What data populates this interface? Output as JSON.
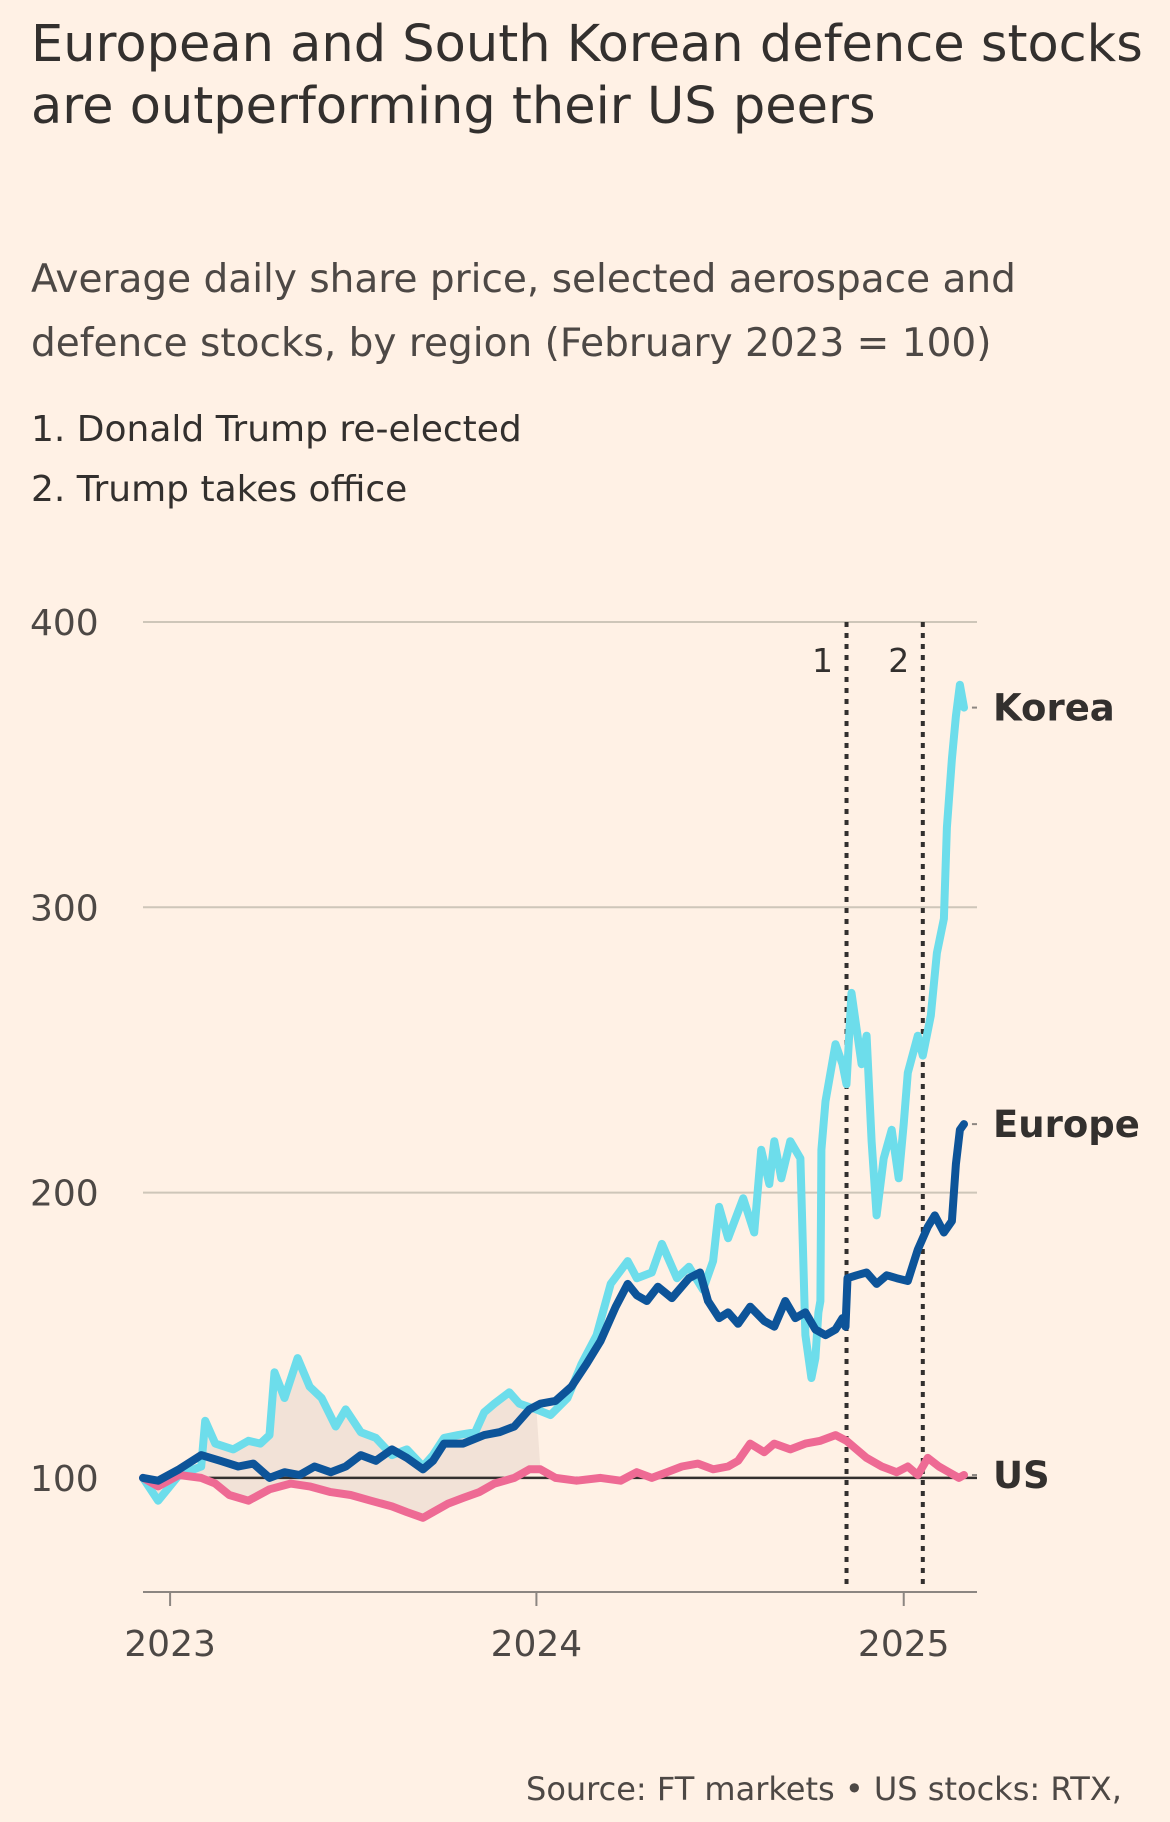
{
  "title": "European and South Korean defence stocks are outperforming their US peers",
  "subtitle": "Average daily share price, selected aerospace and defence stocks, by region (February 2023 = 100)",
  "annotations": [
    "1. Donald Trump re-elected",
    "2. Trump takes office"
  ],
  "source": "Source: FT markets • US stocks: RTX,",
  "colors": {
    "background": "#FFF1E5",
    "korea": "#6DDDEB",
    "europe": "#0D5499",
    "us": "#EE6A94",
    "grid": "#CEC6B9",
    "baseline": "#33302E",
    "shade": "#EDDCD2"
  },
  "chart_data": {
    "type": "line",
    "ylim": [
      60,
      400
    ],
    "yticks": [
      100,
      200,
      300,
      400
    ],
    "baseline": 100,
    "xlim": [
      "2022-12-05",
      "2025-03-15"
    ],
    "xticks": [
      {
        "date": "2023-01-01",
        "label": "2023"
      },
      {
        "date": "2024-01-01",
        "label": "2024"
      },
      {
        "date": "2025-01-01",
        "label": "2025"
      }
    ],
    "events": [
      {
        "label": "1",
        "date": "2024-11-05"
      },
      {
        "label": "2",
        "date": "2025-01-20"
      }
    ],
    "series": [
      {
        "name": "Korea",
        "color": "#6DDDEB",
        "points": [
          [
            "2022-12-05",
            100
          ],
          [
            "2022-12-20",
            92
          ],
          [
            "2023-01-10",
            101
          ],
          [
            "2023-02-01",
            104
          ],
          [
            "2023-02-05",
            120
          ],
          [
            "2023-02-15",
            112
          ],
          [
            "2023-03-05",
            110
          ],
          [
            "2023-03-20",
            113
          ],
          [
            "2023-04-01",
            112
          ],
          [
            "2023-04-10",
            115
          ],
          [
            "2023-04-15",
            137
          ],
          [
            "2023-04-25",
            128
          ],
          [
            "2023-05-08",
            142
          ],
          [
            "2023-05-20",
            132
          ],
          [
            "2023-06-01",
            128
          ],
          [
            "2023-06-15",
            118
          ],
          [
            "2023-06-25",
            124
          ],
          [
            "2023-07-10",
            116
          ],
          [
            "2023-07-25",
            114
          ],
          [
            "2023-08-10",
            108
          ],
          [
            "2023-08-25",
            110
          ],
          [
            "2023-09-10",
            104
          ],
          [
            "2023-09-20",
            108
          ],
          [
            "2023-10-01",
            114
          ],
          [
            "2023-10-15",
            115
          ],
          [
            "2023-11-01",
            116
          ],
          [
            "2023-11-10",
            123
          ],
          [
            "2023-11-20",
            126
          ],
          [
            "2023-12-05",
            130
          ],
          [
            "2023-12-15",
            126
          ],
          [
            "2024-01-01",
            124
          ],
          [
            "2024-01-15",
            122
          ],
          [
            "2024-02-01",
            128
          ],
          [
            "2024-02-15",
            140
          ],
          [
            "2024-03-01",
            150
          ],
          [
            "2024-03-15",
            168
          ],
          [
            "2024-04-01",
            176
          ],
          [
            "2024-04-10",
            170
          ],
          [
            "2024-04-25",
            172
          ],
          [
            "2024-05-05",
            182
          ],
          [
            "2024-05-20",
            170
          ],
          [
            "2024-06-01",
            174
          ],
          [
            "2024-06-15",
            166
          ],
          [
            "2024-06-25",
            176
          ],
          [
            "2024-07-01",
            195
          ],
          [
            "2024-07-10",
            184
          ],
          [
            "2024-07-25",
            198
          ],
          [
            "2024-08-05",
            186
          ],
          [
            "2024-08-12",
            215
          ],
          [
            "2024-08-20",
            203
          ],
          [
            "2024-08-25",
            218
          ],
          [
            "2024-09-01",
            205
          ],
          [
            "2024-09-10",
            218
          ],
          [
            "2024-09-20",
            212
          ],
          [
            "2024-09-25",
            150
          ],
          [
            "2024-10-01",
            135
          ],
          [
            "2024-10-05",
            142
          ],
          [
            "2024-10-08",
            158
          ],
          [
            "2024-10-10",
            162
          ],
          [
            "2024-10-11",
            215
          ],
          [
            "2024-10-15",
            232
          ],
          [
            "2024-10-25",
            252
          ],
          [
            "2024-11-01",
            245
          ],
          [
            "2024-11-05",
            238
          ],
          [
            "2024-11-10",
            270
          ],
          [
            "2024-11-20",
            245
          ],
          [
            "2024-11-25",
            255
          ],
          [
            "2024-11-30",
            218
          ],
          [
            "2024-12-05",
            192
          ],
          [
            "2024-12-12",
            212
          ],
          [
            "2024-12-20",
            222
          ],
          [
            "2024-12-27",
            205
          ],
          [
            "2025-01-01",
            224
          ],
          [
            "2025-01-05",
            242
          ],
          [
            "2025-01-15",
            255
          ],
          [
            "2025-01-20",
            248
          ],
          [
            "2025-01-28",
            262
          ],
          [
            "2025-02-03",
            284
          ],
          [
            "2025-02-10",
            296
          ],
          [
            "2025-02-13",
            328
          ],
          [
            "2025-02-18",
            352
          ],
          [
            "2025-02-22",
            367
          ],
          [
            "2025-02-26",
            378
          ],
          [
            "2025-03-02",
            370
          ]
        ]
      },
      {
        "name": "Europe",
        "color": "#0D5499",
        "points": [
          [
            "2022-12-05",
            100
          ],
          [
            "2022-12-20",
            99
          ],
          [
            "2023-01-10",
            103
          ],
          [
            "2023-02-01",
            108
          ],
          [
            "2023-02-20",
            106
          ],
          [
            "2023-03-10",
            104
          ],
          [
            "2023-03-25",
            105
          ],
          [
            "2023-04-10",
            100
          ],
          [
            "2023-04-25",
            102
          ],
          [
            "2023-05-10",
            101
          ],
          [
            "2023-05-25",
            104
          ],
          [
            "2023-06-10",
            102
          ],
          [
            "2023-06-25",
            104
          ],
          [
            "2023-07-10",
            108
          ],
          [
            "2023-07-25",
            106
          ],
          [
            "2023-08-10",
            110
          ],
          [
            "2023-08-25",
            107
          ],
          [
            "2023-09-10",
            103
          ],
          [
            "2023-09-20",
            106
          ],
          [
            "2023-10-01",
            112
          ],
          [
            "2023-10-20",
            112
          ],
          [
            "2023-11-10",
            115
          ],
          [
            "2023-11-25",
            116
          ],
          [
            "2023-12-10",
            118
          ],
          [
            "2023-12-25",
            124
          ],
          [
            "2024-01-05",
            126
          ],
          [
            "2024-01-20",
            127
          ],
          [
            "2024-02-05",
            132
          ],
          [
            "2024-02-20",
            140
          ],
          [
            "2024-03-05",
            148
          ],
          [
            "2024-03-20",
            160
          ],
          [
            "2024-04-01",
            168
          ],
          [
            "2024-04-10",
            164
          ],
          [
            "2024-04-20",
            162
          ],
          [
            "2024-05-01",
            167
          ],
          [
            "2024-05-15",
            163
          ],
          [
            "2024-06-01",
            170
          ],
          [
            "2024-06-12",
            172
          ],
          [
            "2024-06-20",
            162
          ],
          [
            "2024-07-01",
            156
          ],
          [
            "2024-07-10",
            158
          ],
          [
            "2024-07-20",
            154
          ],
          [
            "2024-08-01",
            160
          ],
          [
            "2024-08-15",
            155
          ],
          [
            "2024-08-25",
            153
          ],
          [
            "2024-09-05",
            162
          ],
          [
            "2024-09-15",
            156
          ],
          [
            "2024-09-25",
            158
          ],
          [
            "2024-10-05",
            152
          ],
          [
            "2024-10-15",
            150
          ],
          [
            "2024-10-25",
            152
          ],
          [
            "2024-11-01",
            156
          ],
          [
            "2024-11-04",
            153
          ],
          [
            "2024-11-06",
            170
          ],
          [
            "2024-11-15",
            171
          ],
          [
            "2024-11-25",
            172
          ],
          [
            "2024-12-05",
            168
          ],
          [
            "2024-12-15",
            171
          ],
          [
            "2024-12-25",
            170
          ],
          [
            "2025-01-05",
            169
          ],
          [
            "2025-01-15",
            180
          ],
          [
            "2025-01-25",
            188
          ],
          [
            "2025-02-01",
            192
          ],
          [
            "2025-02-10",
            186
          ],
          [
            "2025-02-18",
            190
          ],
          [
            "2025-02-22",
            210
          ],
          [
            "2025-02-26",
            222
          ],
          [
            "2025-03-02",
            224
          ]
        ]
      },
      {
        "name": "US",
        "color": "#EE6A94",
        "points": [
          [
            "2022-12-05",
            100
          ],
          [
            "2022-12-20",
            97
          ],
          [
            "2023-01-10",
            101
          ],
          [
            "2023-02-01",
            100
          ],
          [
            "2023-02-15",
            98
          ],
          [
            "2023-03-01",
            94
          ],
          [
            "2023-03-20",
            92
          ],
          [
            "2023-04-10",
            96
          ],
          [
            "2023-05-01",
            98
          ],
          [
            "2023-05-20",
            97
          ],
          [
            "2023-06-10",
            95
          ],
          [
            "2023-06-30",
            94
          ],
          [
            "2023-07-20",
            92
          ],
          [
            "2023-08-10",
            90
          ],
          [
            "2023-08-25",
            88
          ],
          [
            "2023-09-10",
            86
          ],
          [
            "2023-09-20",
            88
          ],
          [
            "2023-10-05",
            91
          ],
          [
            "2023-10-20",
            93
          ],
          [
            "2023-11-05",
            95
          ],
          [
            "2023-11-20",
            98
          ],
          [
            "2023-12-10",
            100
          ],
          [
            "2023-12-25",
            103
          ],
          [
            "2024-01-05",
            103
          ],
          [
            "2024-01-20",
            100
          ],
          [
            "2024-02-10",
            99
          ],
          [
            "2024-03-05",
            100
          ],
          [
            "2024-03-25",
            99
          ],
          [
            "2024-04-10",
            102
          ],
          [
            "2024-04-25",
            100
          ],
          [
            "2024-05-10",
            102
          ],
          [
            "2024-05-25",
            104
          ],
          [
            "2024-06-10",
            105
          ],
          [
            "2024-06-25",
            103
          ],
          [
            "2024-07-10",
            104
          ],
          [
            "2024-07-20",
            106
          ],
          [
            "2024-08-01",
            112
          ],
          [
            "2024-08-15",
            109
          ],
          [
            "2024-08-25",
            112
          ],
          [
            "2024-09-10",
            110
          ],
          [
            "2024-09-25",
            112
          ],
          [
            "2024-10-10",
            113
          ],
          [
            "2024-10-25",
            115
          ],
          [
            "2024-11-05",
            113
          ],
          [
            "2024-11-15",
            110
          ],
          [
            "2024-11-25",
            107
          ],
          [
            "2024-12-10",
            104
          ],
          [
            "2024-12-25",
            102
          ],
          [
            "2025-01-05",
            104
          ],
          [
            "2025-01-15",
            101
          ],
          [
            "2025-01-25",
            107
          ],
          [
            "2025-02-05",
            104
          ],
          [
            "2025-02-15",
            102
          ],
          [
            "2025-02-25",
            100
          ],
          [
            "2025-03-02",
            101
          ]
        ]
      }
    ]
  }
}
